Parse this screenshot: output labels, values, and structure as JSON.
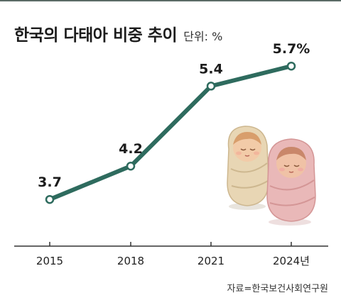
{
  "header": {
    "title": "한국의 다태아 비중 추이",
    "unit": "단위: %"
  },
  "source": "자료=한국보건사회연구원",
  "colors": {
    "line": "#2e6b5e",
    "axis": "#333333",
    "swaddle_left": "#e8d6b4",
    "swaddle_right": "#e9b8b8"
  },
  "chart_data": {
    "type": "line",
    "title": "한국의 다태아 비중 추이",
    "unit": "단위: %",
    "categories": [
      "2015",
      "2018",
      "2021",
      "2024년"
    ],
    "values": [
      3.7,
      4.2,
      5.4,
      5.7
    ],
    "data_labels": [
      "3.7",
      "4.2",
      "5.4",
      "5.7%"
    ],
    "ylim": [
      3.0,
      6.0
    ],
    "grid": false
  },
  "illustration": {
    "icon_left": "swaddled-baby-icon",
    "icon_right": "swaddled-baby-icon"
  }
}
